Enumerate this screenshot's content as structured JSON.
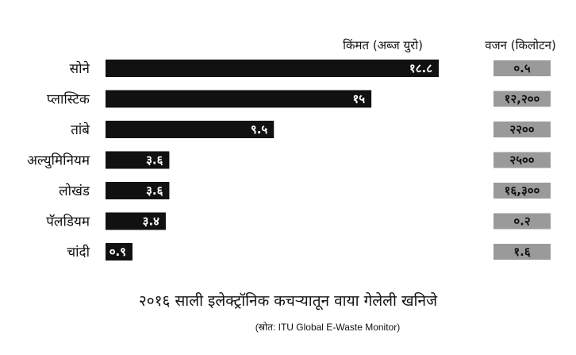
{
  "colors": {
    "bar": "#111111",
    "weight_box": "#9a9a9a",
    "value_text": "#ffffff"
  },
  "chart_data": {
    "type": "bar",
    "orientation": "horizontal",
    "title": "२०१६ साली इलेक्ट्रॉनिक कचऱ्यातून वाया गेलेली खनिजे",
    "source": "(स्रोत: ITU Global E-Waste Monitor)",
    "value_header": "किंमत (अब्ज युरो)",
    "weight_header": "वजन (किलोटन)",
    "categories": [
      "सोने",
      "प्लास्टिक",
      "तांबे",
      "अल्युमिनियम",
      "लोखंड",
      "पॅलडियम",
      "चांदी"
    ],
    "values": [
      18.8,
      15,
      9.5,
      3.6,
      3.6,
      3.4,
      0.9
    ],
    "value_labels": [
      "१८.८",
      "१५",
      "९.५",
      "३.६",
      "३.६",
      "३.४",
      "०.९"
    ],
    "weights": [
      0.5,
      12200,
      2200,
      2500,
      16300,
      0.2,
      1.6
    ],
    "weight_labels": [
      "०.५",
      "१२,२००",
      "२२००",
      "२५००",
      "१६,३००",
      "०.२",
      "१.६"
    ],
    "xlim": [
      0,
      18.8
    ],
    "grid": false,
    "legend": "none"
  }
}
